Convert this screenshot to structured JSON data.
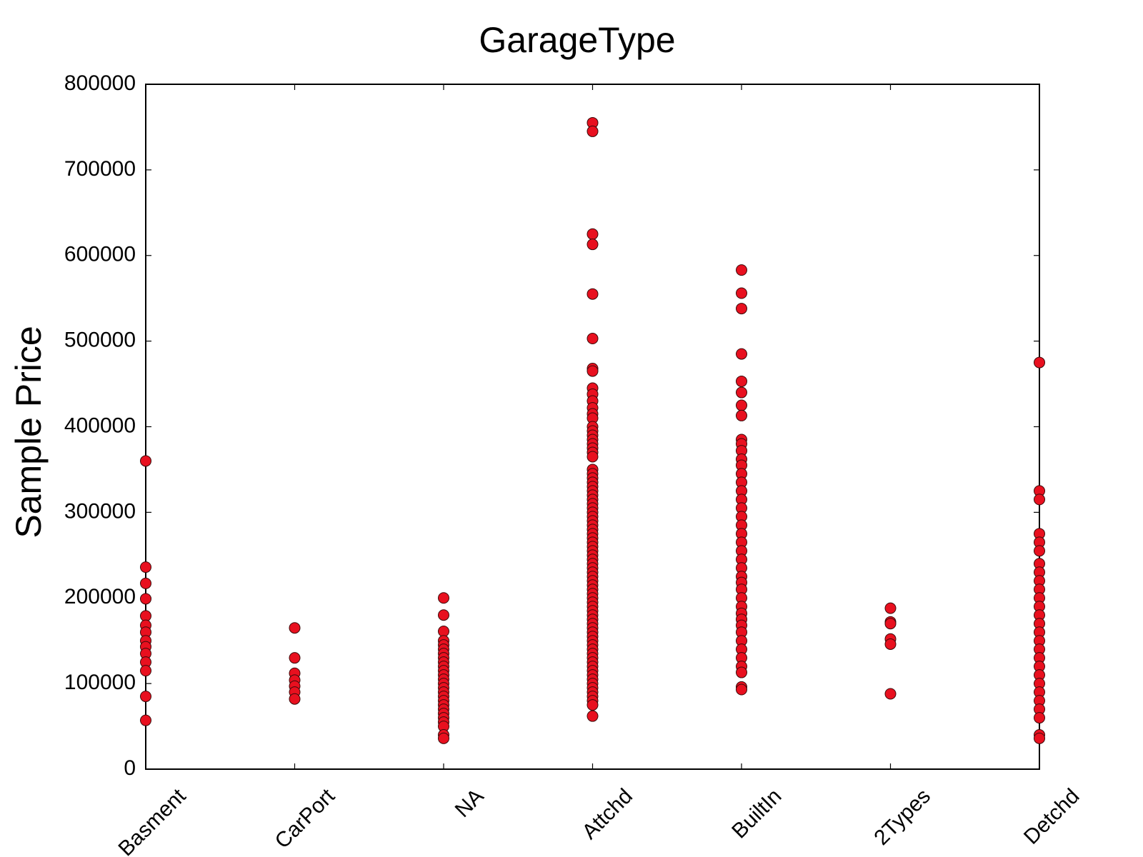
{
  "chart_data": {
    "type": "strip",
    "title": "GarageType",
    "y_label": "Sample Price",
    "categories": [
      "Basment",
      "CarPort",
      "NA",
      "Attchd",
      "BuiltIn",
      "2Types",
      "Detchd"
    ],
    "color": "#e8101f",
    "ylim": [
      0,
      800000
    ],
    "yticks": [
      0,
      100000,
      200000,
      300000,
      400000,
      500000,
      600000,
      700000,
      800000
    ],
    "grid": false,
    "values": [
      [
        360000,
        236000,
        217000,
        199000,
        179000,
        168000,
        160000,
        150000,
        143000,
        135000,
        125000,
        115000,
        85000,
        57000
      ],
      [
        165000,
        130000,
        112000,
        104000,
        97000,
        90000,
        82000
      ],
      [
        200000,
        180000,
        161000,
        150000,
        145000,
        140000,
        135000,
        130000,
        125000,
        120000,
        115000,
        110000,
        105000,
        100000,
        95000,
        90000,
        85000,
        80000,
        75000,
        70000,
        65000,
        60000,
        55000,
        50000,
        40000,
        36000
      ],
      [
        755000,
        745000,
        625000,
        613000,
        555000,
        503000,
        468000,
        465000,
        445000,
        438000,
        430000,
        422000,
        415000,
        410000,
        400000,
        395000,
        390000,
        385000,
        380000,
        375000,
        370000,
        365000,
        350000,
        345000,
        340000,
        335000,
        330000,
        325000,
        320000,
        315000,
        310000,
        305000,
        300000,
        295000,
        290000,
        285000,
        280000,
        275000,
        270000,
        265000,
        260000,
        255000,
        250000,
        245000,
        240000,
        235000,
        230000,
        225000,
        220000,
        215000,
        210000,
        205000,
        200000,
        195000,
        190000,
        185000,
        180000,
        175000,
        170000,
        165000,
        160000,
        155000,
        150000,
        145000,
        140000,
        135000,
        130000,
        125000,
        120000,
        115000,
        110000,
        105000,
        100000,
        95000,
        90000,
        85000,
        80000,
        75000,
        62000
      ],
      [
        583000,
        556000,
        538000,
        485000,
        453000,
        440000,
        425000,
        413000,
        385000,
        380000,
        372000,
        362000,
        355000,
        345000,
        335000,
        325000,
        315000,
        305000,
        295000,
        285000,
        275000,
        265000,
        255000,
        245000,
        235000,
        225000,
        218000,
        210000,
        200000,
        190000,
        182000,
        175000,
        168000,
        160000,
        150000,
        140000,
        130000,
        120000,
        113000,
        96000,
        93000
      ],
      [
        188000,
        172000,
        170000,
        152000,
        146000,
        88000
      ],
      [
        475000,
        325000,
        315000,
        275000,
        265000,
        255000,
        240000,
        230000,
        220000,
        210000,
        200000,
        190000,
        180000,
        170000,
        160000,
        150000,
        140000,
        130000,
        120000,
        110000,
        100000,
        90000,
        80000,
        70000,
        60000,
        40000,
        36000
      ]
    ]
  }
}
